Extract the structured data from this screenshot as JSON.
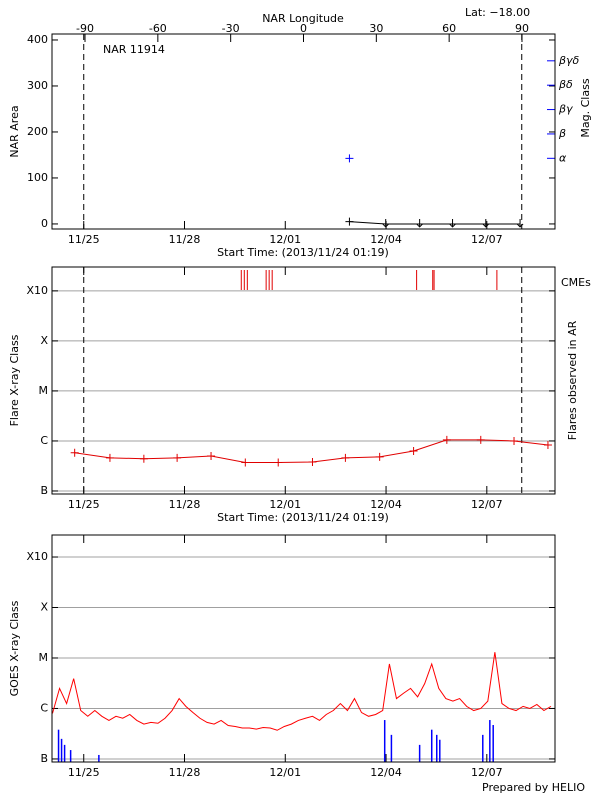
{
  "footer": "Prepared by HELIO",
  "chart_data": [
    {
      "type": "scatter",
      "title": "NAR 11914",
      "annotation": "Lat: −18.00",
      "x_label": "Start Time: (2013/11/24 01:19)",
      "x2_label": "NAR Longitude",
      "y_label": "NAR Area",
      "y2_label": "Mag. Class",
      "xlim": [
        0.055,
        15.03
      ],
      "xticks": [
        {
          "value": 1,
          "label": "11/25"
        },
        {
          "value": 4,
          "label": "11/28"
        },
        {
          "value": 7,
          "label": "12/01"
        },
        {
          "value": 10,
          "label": "12/04"
        },
        {
          "value": 13,
          "label": "12/07"
        }
      ],
      "x2lim": [
        -103.6,
        103.6
      ],
      "x2ticks": [
        -90,
        -60,
        -30,
        0,
        30,
        60,
        90
      ],
      "ylim": [
        -11,
        413
      ],
      "yticks": [
        0,
        100,
        200,
        300,
        400
      ],
      "y2lim": [
        -1.9,
        6.1
      ],
      "y2ticks": [
        {
          "value": 1,
          "label": "α"
        },
        {
          "value": 2,
          "label": "β"
        },
        {
          "value": 3,
          "label": "βγ"
        },
        {
          "value": 4,
          "label": "βδ"
        },
        {
          "value": 5,
          "label": "βγδ"
        }
      ],
      "y2color": "#0000ff",
      "limb_x": [
        1.0,
        14.04
      ],
      "series": [
        {
          "color": "#000000",
          "x": [
            8.91,
            9.99,
            11.0,
            11.98,
            12.97,
            13.99
          ],
          "values": [
            5,
            0,
            0,
            0,
            0,
            0
          ]
        },
        {
          "color": "#0000ff",
          "axis": "y2",
          "x": [
            8.91
          ],
          "values": [
            1
          ]
        }
      ]
    },
    {
      "type": "line",
      "x_label": "Start Time: (2013/11/24 01:19)",
      "y_label": "Flare X-ray Class",
      "right_label": "Flares observed in AR",
      "xlim": [
        0.055,
        15.03
      ],
      "xticks": [
        {
          "value": 1,
          "label": "11/25"
        },
        {
          "value": 4,
          "label": "11/28"
        },
        {
          "value": 7,
          "label": "12/01"
        },
        {
          "value": 10,
          "label": "12/04"
        },
        {
          "value": 13,
          "label": "12/07"
        }
      ],
      "log_y": true,
      "ylim": [
        8.7e-08,
        0.003
      ],
      "yticks": [
        {
          "value": 1e-07,
          "label": "B"
        },
        {
          "value": 1e-06,
          "label": "C"
        },
        {
          "value": 1e-05,
          "label": "M"
        },
        {
          "value": 0.0001,
          "label": "X"
        },
        {
          "value": 0.001,
          "label": "X10"
        }
      ],
      "grid": true,
      "limb_x": [
        1.0,
        14.04
      ],
      "series": [
        {
          "color": "#e00000",
          "markers": true,
          "x": [
            0.73,
            1.78,
            2.79,
            3.78,
            4.79,
            5.81,
            6.79,
            7.81,
            8.79,
            9.81,
            10.82,
            11.81,
            12.82,
            13.81,
            14.82
          ],
          "values": [
            5.8e-07,
            4.6e-07,
            4.4e-07,
            4.6e-07,
            5e-07,
            3.7e-07,
            3.7e-07,
            3.8e-07,
            4.6e-07,
            4.8e-07,
            6.3e-07,
            1.05e-06,
            1.05e-06,
            1e-06,
            8.3e-07
          ]
        }
      ],
      "cme": {
        "label": "CMEs",
        "color": "#e00000",
        "x": [
          5.69,
          5.78,
          5.87,
          6.43,
          6.52,
          6.61,
          10.91,
          11.39,
          11.43,
          13.3
        ]
      }
    },
    {
      "type": "line",
      "y_label": "GOES X-ray Class",
      "xlim": [
        0.055,
        15.03
      ],
      "xticks": [
        {
          "value": 1,
          "label": "11/25"
        },
        {
          "value": 4,
          "label": "11/28"
        },
        {
          "value": 7,
          "label": "12/01"
        },
        {
          "value": 10,
          "label": "12/04"
        },
        {
          "value": 13,
          "label": "12/07"
        }
      ],
      "log_y": true,
      "ylim": [
        8.7e-08,
        0.00273
      ],
      "yticks": [
        {
          "value": 1e-07,
          "label": "B"
        },
        {
          "value": 1e-06,
          "label": "C"
        },
        {
          "value": 1e-05,
          "label": "M"
        },
        {
          "value": 0.0001,
          "label": "X"
        },
        {
          "value": 0.001,
          "label": "X10"
        }
      ],
      "grid": true,
      "series": [
        {
          "color": "#ff0000",
          "x": [
            0.07,
            0.28,
            0.49,
            0.7,
            0.91,
            1.12,
            1.33,
            1.54,
            1.75,
            1.96,
            2.16,
            2.37,
            2.58,
            2.79,
            3.0,
            3.21,
            3.42,
            3.63,
            3.84,
            4.04,
            4.25,
            4.46,
            4.67,
            4.88,
            5.09,
            5.3,
            5.51,
            5.72,
            5.93,
            6.14,
            6.34,
            6.55,
            6.76,
            6.97,
            7.18,
            7.39,
            7.6,
            7.81,
            8.02,
            8.22,
            8.43,
            8.64,
            8.85,
            9.06,
            9.27,
            9.48,
            9.69,
            9.9,
            10.1,
            10.31,
            10.52,
            10.73,
            10.94,
            11.15,
            11.36,
            11.57,
            11.78,
            11.99,
            12.19,
            12.4,
            12.61,
            12.82,
            13.03,
            13.24,
            13.45,
            13.66,
            13.87,
            14.08,
            14.28,
            14.49,
            14.7,
            14.91
          ],
          "values": [
            8e-07,
            2.5e-06,
            1.25e-06,
            3.9e-06,
            9.1e-07,
            7e-07,
            9.1e-07,
            7e-07,
            5.8e-07,
            7e-07,
            6.4e-07,
            7.6e-07,
            5.8e-07,
            4.9e-07,
            5.3e-07,
            5.1e-07,
            6.4e-07,
            9.1e-07,
            1.57e-06,
            1.1e-06,
            8.3e-07,
            6.4e-07,
            5.3e-07,
            4.9e-07,
            5.8e-07,
            4.6e-07,
            4.4e-07,
            4.1e-07,
            4.1e-07,
            3.9e-07,
            4.2e-07,
            4.1e-07,
            3.7e-07,
            4.4e-07,
            4.9e-07,
            5.8e-07,
            6.4e-07,
            7e-07,
            5.8e-07,
            7.6e-07,
            9.1e-07,
            1.25e-06,
            9.1e-07,
            1.57e-06,
            8.3e-07,
            7e-07,
            7.6e-07,
            9.1e-07,
            7.6e-06,
            1.57e-06,
            2e-06,
            2.5e-06,
            1.7e-06,
            3.1e-06,
            7.6e-06,
            2.5e-06,
            1.57e-06,
            1.4e-06,
            1.57e-06,
            1.1e-06,
            9.1e-07,
            1e-06,
            1.4e-06,
            1.3e-05,
            1.25e-06,
            1e-06,
            9.1e-07,
            1.1e-06,
            1e-06,
            1.2e-06,
            9.1e-07,
            1.1e-06
          ]
        },
        {
          "color": "#0000ff",
          "style": "spikes",
          "x": [
            0.25,
            0.34,
            0.43,
            0.61,
            1.45,
            9.96,
            10.16,
            11.0,
            11.36,
            11.51,
            11.6,
            12.88,
            13.09,
            13.19
          ],
          "values": [
            3.8e-07,
            2.5e-07,
            1.9e-07,
            1.5e-07,
            1.2e-07,
            5.9e-07,
            3e-07,
            1.9e-07,
            3.8e-07,
            3e-07,
            2.4e-07,
            3e-07,
            5.9e-07,
            4.7e-07
          ]
        }
      ]
    }
  ]
}
